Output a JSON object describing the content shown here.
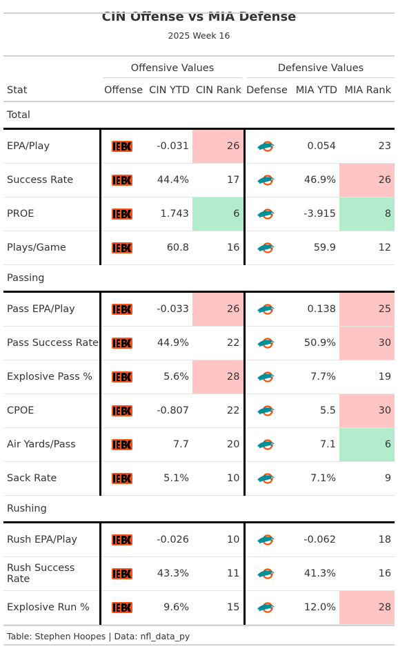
{
  "title": "CIN Offense vs MIA Defense",
  "subtitle": "2025 Week 16",
  "spanners": {
    "offense": "Offensive Values",
    "defense": "Defensive Values"
  },
  "columns": {
    "stat": "Stat",
    "offense": "Offense",
    "cin_ytd": "CIN YTD",
    "cin_rank": "CIN Rank",
    "defense": "Defense",
    "mia_ytd": "MIA YTD",
    "mia_rank": "MIA Rank"
  },
  "colors": {
    "bad": "#ffc4c4",
    "good": "#b3ebcd",
    "bengals_orange": "#fb4f14",
    "dolphins_aqua": "#008e97",
    "dolphins_orange": "#fc4c02"
  },
  "icons": {
    "offense": "bengals-logo-icon",
    "defense": "dolphins-logo-icon"
  },
  "groups": [
    {
      "label": "Total",
      "rows": [
        {
          "stat": "EPA/Play",
          "cin_ytd": "-0.031",
          "cin_rank": "26",
          "cin_rank_tier": "bad",
          "mia_ytd": "0.054",
          "mia_rank": "23",
          "mia_rank_tier": ""
        },
        {
          "stat": "Success Rate",
          "cin_ytd": "44.4%",
          "cin_rank": "17",
          "cin_rank_tier": "",
          "mia_ytd": "46.9%",
          "mia_rank": "26",
          "mia_rank_tier": "bad"
        },
        {
          "stat": "PROE",
          "cin_ytd": "1.743",
          "cin_rank": "6",
          "cin_rank_tier": "good",
          "mia_ytd": "-3.915",
          "mia_rank": "8",
          "mia_rank_tier": "good"
        },
        {
          "stat": "Plays/Game",
          "cin_ytd": "60.8",
          "cin_rank": "16",
          "cin_rank_tier": "",
          "mia_ytd": "59.9",
          "mia_rank": "12",
          "mia_rank_tier": ""
        }
      ]
    },
    {
      "label": "Passing",
      "rows": [
        {
          "stat": "Pass EPA/Play",
          "cin_ytd": "-0.033",
          "cin_rank": "26",
          "cin_rank_tier": "bad",
          "mia_ytd": "0.138",
          "mia_rank": "25",
          "mia_rank_tier": "bad"
        },
        {
          "stat": "Pass Success Rate",
          "cin_ytd": "44.9%",
          "cin_rank": "22",
          "cin_rank_tier": "",
          "mia_ytd": "50.9%",
          "mia_rank": "30",
          "mia_rank_tier": "bad"
        },
        {
          "stat": "Explosive Pass %",
          "cin_ytd": "5.6%",
          "cin_rank": "28",
          "cin_rank_tier": "bad",
          "mia_ytd": "7.7%",
          "mia_rank": "19",
          "mia_rank_tier": ""
        },
        {
          "stat": "CPOE",
          "cin_ytd": "-0.807",
          "cin_rank": "22",
          "cin_rank_tier": "",
          "mia_ytd": "5.5",
          "mia_rank": "30",
          "mia_rank_tier": "bad"
        },
        {
          "stat": "Air Yards/Pass",
          "cin_ytd": "7.7",
          "cin_rank": "20",
          "cin_rank_tier": "",
          "mia_ytd": "7.1",
          "mia_rank": "6",
          "mia_rank_tier": "good"
        },
        {
          "stat": "Sack Rate",
          "cin_ytd": "5.1%",
          "cin_rank": "10",
          "cin_rank_tier": "",
          "mia_ytd": "7.1%",
          "mia_rank": "9",
          "mia_rank_tier": ""
        }
      ]
    },
    {
      "label": "Rushing",
      "rows": [
        {
          "stat": "Rush EPA/Play",
          "cin_ytd": "-0.026",
          "cin_rank": "10",
          "cin_rank_tier": "",
          "mia_ytd": "-0.062",
          "mia_rank": "18",
          "mia_rank_tier": ""
        },
        {
          "stat": "Rush Success Rate",
          "cin_ytd": "43.3%",
          "cin_rank": "11",
          "cin_rank_tier": "",
          "mia_ytd": "41.3%",
          "mia_rank": "16",
          "mia_rank_tier": ""
        },
        {
          "stat": "Explosive Run %",
          "cin_ytd": "9.6%",
          "cin_rank": "15",
          "cin_rank_tier": "",
          "mia_ytd": "12.0%",
          "mia_rank": "28",
          "mia_rank_tier": "bad"
        }
      ]
    }
  ],
  "footer": "Table: Stephen Hoopes | Data: nfl_data_py"
}
